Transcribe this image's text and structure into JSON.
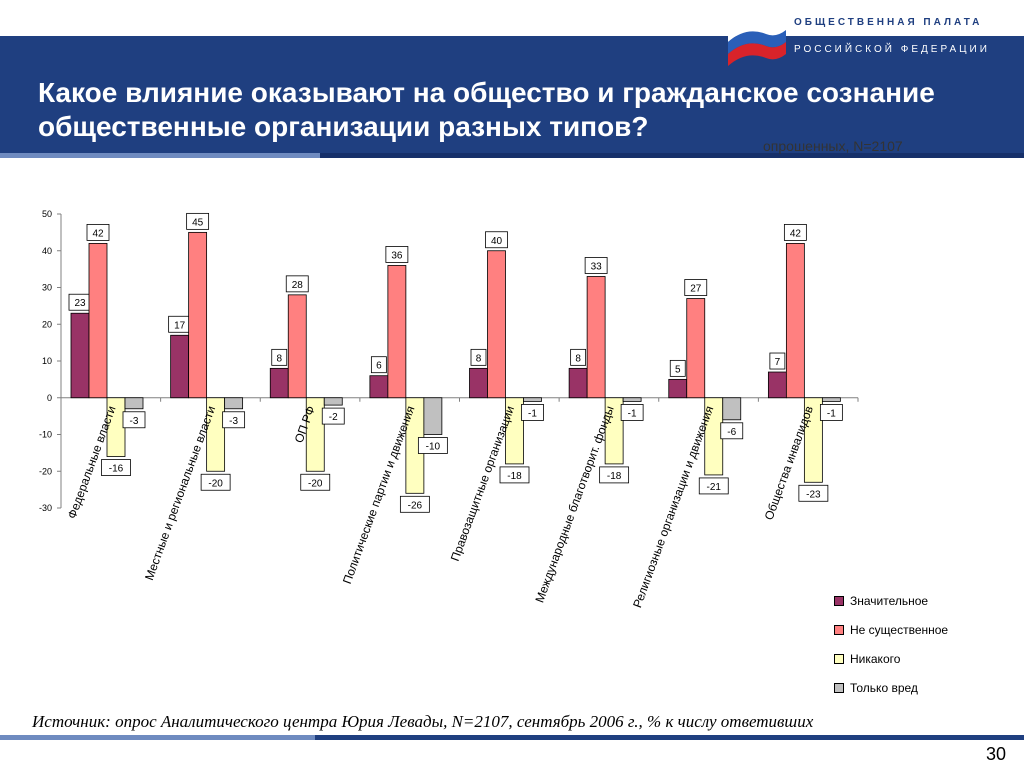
{
  "header": {
    "org_line1": "ОБЩЕСТВЕННАЯ ПАЛАТА",
    "org_line2": "РОССИЙСКОЙ ФЕДЕРАЦИИ",
    "title": "Какое влияние оказывают на общество и гражданское сознание общественные организации разных типов?",
    "note": "опрошенных, N=2107"
  },
  "colors": {
    "header_bg": "#1f3f80",
    "flag_white": "#ffffff",
    "flag_blue": "#2a5fb8",
    "flag_red": "#d8232a"
  },
  "chart_data": {
    "type": "bar",
    "categories": [
      "Федеральные власти",
      "Местные и региональные власти",
      "ОП РФ",
      "Политические партии и движения",
      "Правозащитные организации",
      "Международные благотворит. фонды",
      "Религиозные организации и движения",
      "Общества инвалидов"
    ],
    "series": [
      {
        "name": "Значительное",
        "color": "#993366",
        "values": [
          23,
          17,
          8,
          6,
          8,
          8,
          5,
          7
        ]
      },
      {
        "name": "Не существенное",
        "color": "#ff8080",
        "values": [
          42,
          45,
          28,
          36,
          40,
          33,
          27,
          42
        ]
      },
      {
        "name": "Никакого",
        "color": "#ffffc0",
        "values": [
          -16,
          -20,
          -20,
          -26,
          -18,
          -18,
          -21,
          -23
        ]
      },
      {
        "name": "Только вред",
        "color": "#c0c0c0",
        "values": [
          -3,
          -3,
          -2,
          -10,
          -1,
          -1,
          -6,
          -1
        ]
      }
    ],
    "ylim": [
      -30,
      50
    ],
    "yticks": [
      50,
      40,
      30,
      20,
      10,
      0,
      -10,
      -20,
      -30
    ],
    "legend_position": "right",
    "grid": false
  },
  "footer": {
    "source": "Источник: опрос Аналитического центра Юрия Левады, N=2107, сентябрь 2006 г., % к числу ответивших",
    "page_number": "30"
  }
}
